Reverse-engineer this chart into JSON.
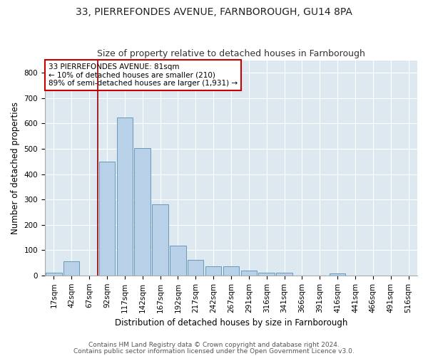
{
  "title1": "33, PIERREFONDES AVENUE, FARNBOROUGH, GU14 8PA",
  "title2": "Size of property relative to detached houses in Farnborough",
  "xlabel": "Distribution of detached houses by size in Farnborough",
  "ylabel": "Number of detached properties",
  "categories": [
    "17sqm",
    "42sqm",
    "67sqm",
    "92sqm",
    "117sqm",
    "142sqm",
    "167sqm",
    "192sqm",
    "217sqm",
    "242sqm",
    "267sqm",
    "291sqm",
    "316sqm",
    "341sqm",
    "366sqm",
    "391sqm",
    "416sqm",
    "441sqm",
    "466sqm",
    "491sqm",
    "516sqm"
  ],
  "bar_heights": [
    12,
    55,
    0,
    450,
    625,
    503,
    280,
    118,
    62,
    35,
    35,
    20,
    10,
    10,
    0,
    0,
    9,
    0,
    0,
    0,
    0
  ],
  "bar_color": "#b8d0e8",
  "bar_edge_color": "#6699bb",
  "vline_x": 2.5,
  "vline_color": "#990000",
  "annotation_text": "33 PIERREFONDES AVENUE: 81sqm\n← 10% of detached houses are smaller (210)\n89% of semi-detached houses are larger (1,931) →",
  "annotation_box_color": "#ffffff",
  "annotation_box_edge": "#cc0000",
  "ylim": [
    0,
    850
  ],
  "yticks": [
    0,
    100,
    200,
    300,
    400,
    500,
    600,
    700,
    800
  ],
  "fig_bg_color": "#ffffff",
  "plot_bg_color": "#dde8f0",
  "footer1": "Contains HM Land Registry data © Crown copyright and database right 2024.",
  "footer2": "Contains public sector information licensed under the Open Government Licence v3.0.",
  "title_fontsize": 10,
  "subtitle_fontsize": 9,
  "tick_fontsize": 7.5,
  "label_fontsize": 8.5,
  "footer_fontsize": 6.5
}
